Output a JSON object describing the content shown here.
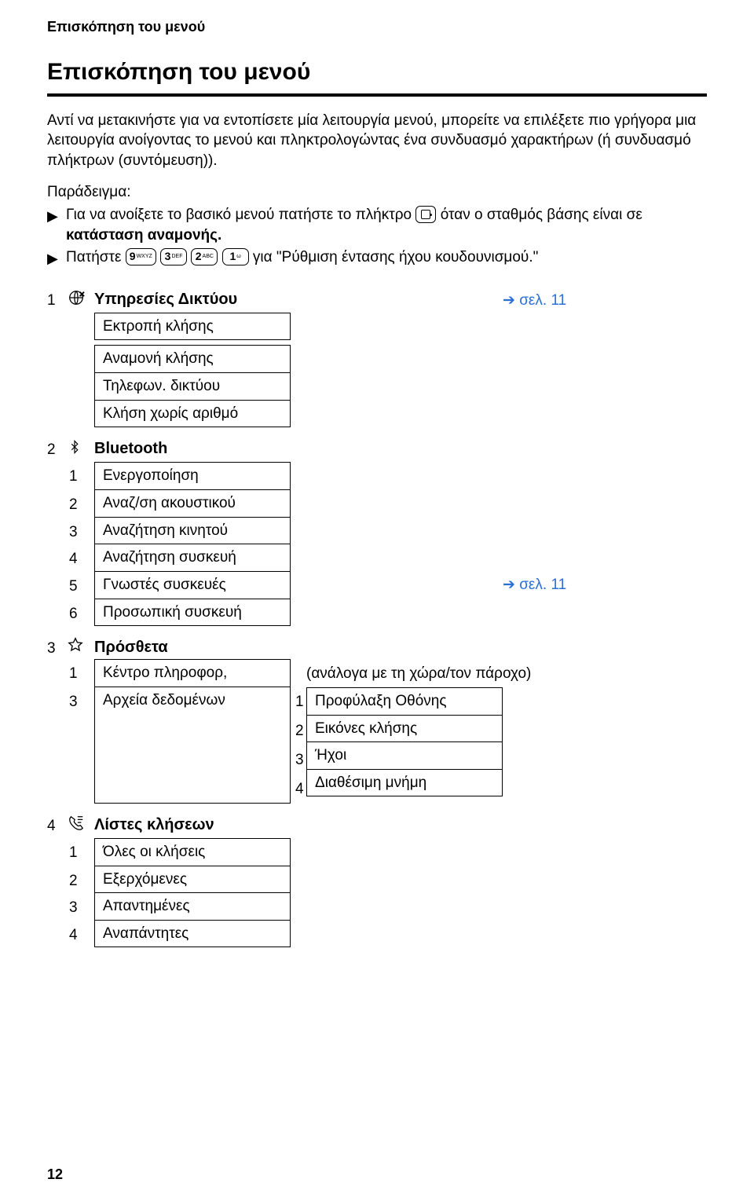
{
  "colors": {
    "text": "#000000",
    "background": "#ffffff",
    "link": "#2a6fd6",
    "border": "#000000"
  },
  "header": {
    "running": "Επισκόπηση του μενού",
    "title": "Επισκόπηση του μενού"
  },
  "intro": "Αντί να μετακινήστε για να εντοπίσετε μία λειτουργία μενού, μπορείτε να επιλέξετε πιο γρήγορα μια λειτουργία ανοίγοντας το μενού και πληκτρολογώντας ένα συνδυασμό χαρακτήρων (ή συνδυασμό πλήκτρων (συντόμευση)).",
  "example_label": "Παράδειγμα:",
  "bullets": {
    "b1_pre": "Για να ανοίξετε το βασικό μενού πατήστε το πλήκτρο ",
    "b1_post": " όταν ο σταθμός βάσης είναι σε",
    "b1_line2": "κατάσταση αναμονής.",
    "b2_pre": "Πατήστε ",
    "b2_post": " για \"Ρύθμιση έντασης ήχου κουδουνισμού.\""
  },
  "keys": {
    "k9": {
      "n": "9",
      "sub": "WXYZ"
    },
    "k3": {
      "n": "3",
      "sub": "DEF"
    },
    "k2": {
      "n": "2",
      "sub": "ABC"
    },
    "k1": {
      "n": "1",
      "sub": "ω"
    }
  },
  "sections": [
    {
      "num": "1",
      "icon": "globe-cross-icon",
      "title": "Υπηρεσίες Δικτύου",
      "link": "σελ. 11",
      "groups": [
        [
          "Εκτροπή κλήσης"
        ],
        [
          "Αναμονή κλήσης",
          "Τηλεφων. δικτύου",
          "Κλήση χωρίς αριθμό"
        ]
      ]
    },
    {
      "num": "2",
      "icon": "bluetooth-icon",
      "title": "Bluetooth",
      "items": [
        {
          "n": "1",
          "label": "Ενεργοποίηση"
        },
        {
          "n": "2",
          "label": "Αναζ/ση ακουστικού"
        },
        {
          "n": "3",
          "label": "Αναζήτηση κινητού"
        },
        {
          "n": "4",
          "label": "Αναζήτηση συσκευή"
        },
        {
          "n": "5",
          "label": "Γνωστές συσκευές",
          "link": "σελ. 11"
        },
        {
          "n": "6",
          "label": "Προσωπική συσκευή"
        }
      ]
    },
    {
      "num": "3",
      "icon": "star-icon",
      "title": "Πρόσθετα",
      "complex": [
        {
          "n": "1",
          "label": "Κέντρο πληροφορ,",
          "note": "(ανάλογα με τη χώρα/τον πάροχο)"
        },
        {
          "n": "3",
          "label": "Αρχεία δεδομένων",
          "sub": [
            {
              "n": "1",
              "label": "Προφύλαξη Οθόνης"
            },
            {
              "n": "2",
              "label": "Εικόνες κλήσης"
            },
            {
              "n": "3",
              "label": "Ήχοι"
            },
            {
              "n": "4",
              "label": "Διαθέσιμη μνήμη"
            }
          ]
        }
      ]
    },
    {
      "num": "4",
      "icon": "phone-list-icon",
      "title": "Λίστες κλήσεων",
      "items": [
        {
          "n": "1",
          "label": "Όλες οι κλήσεις"
        },
        {
          "n": "2",
          "label": "Εξερχόμενες"
        },
        {
          "n": "3",
          "label": "Απαντημένες"
        },
        {
          "n": "4",
          "label": "Αναπάντητες"
        }
      ]
    }
  ],
  "page_number": "12",
  "ref_arrow": "➔"
}
